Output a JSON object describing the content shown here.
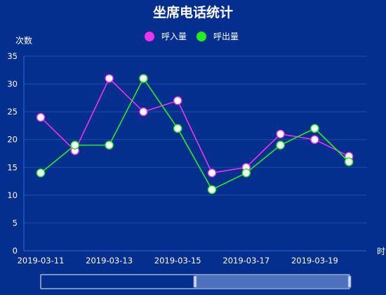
{
  "chart_data": {
    "type": "line",
    "title": "坐席电话统计",
    "ylabel": "次数",
    "xlabel": "时",
    "ylim": [
      0,
      35
    ],
    "yticks": [
      0,
      5,
      10,
      15,
      20,
      25,
      30,
      35
    ],
    "x": [
      "2019-03-11",
      "2019-03-12",
      "2019-03-13",
      "2019-03-14",
      "2019-03-15",
      "2019-03-16",
      "2019-03-17",
      "2019-03-18",
      "2019-03-19",
      "2019-03-20"
    ],
    "xtick_labels": [
      "2019-03-11",
      "2019-03-13",
      "2019-03-15",
      "2019-03-17",
      "2019-03-19"
    ],
    "legend_position": "top-center",
    "grid": true,
    "series": [
      {
        "name": "呼入量",
        "color": "#ee33ee",
        "values": [
          24,
          18,
          31,
          25,
          27,
          14,
          15,
          21,
          20,
          17
        ]
      },
      {
        "name": "呼出量",
        "color": "#22ee22",
        "values": [
          14,
          19,
          19,
          31,
          22,
          11,
          14,
          19,
          22,
          16
        ]
      }
    ]
  },
  "colors": {
    "background": "#052f8f",
    "marker_fill": "#ffffff"
  },
  "data_zoom": {
    "range_start_fraction": 0.5,
    "range_end_fraction": 1.0
  }
}
